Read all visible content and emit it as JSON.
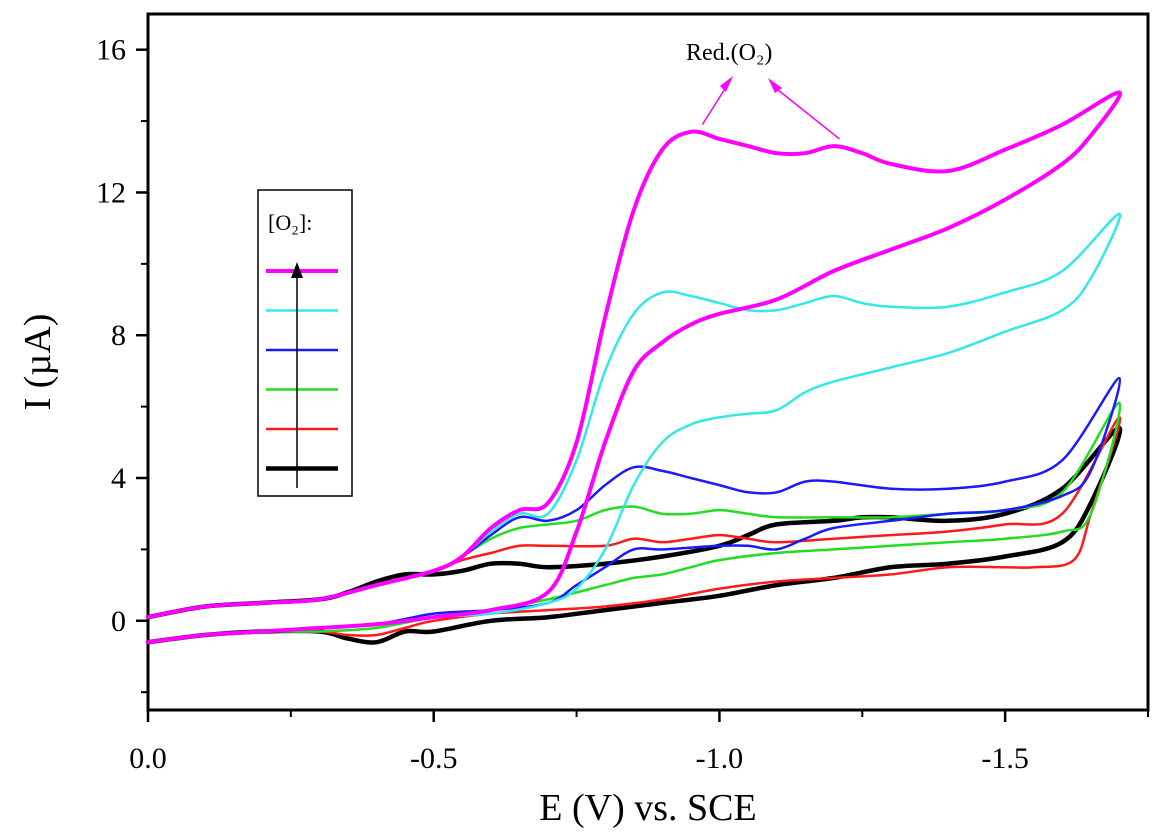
{
  "chart_data": {
    "type": "line",
    "title": "",
    "xlabel": "E (V) vs. SCE",
    "ylabel": "I (µA)",
    "x_reversed": true,
    "xlim": [
      0.0,
      -1.75
    ],
    "ylim": [
      -2.5,
      17.0
    ],
    "x_ticks": [
      0.0,
      -0.5,
      -1.0,
      -1.5
    ],
    "x_tick_labels": [
      "0.0",
      "-0.5",
      "-1.0",
      "-1.5"
    ],
    "y_ticks": [
      0,
      4,
      8,
      12,
      16
    ],
    "y_tick_labels": [
      "0",
      "4",
      "8",
      "12",
      "16"
    ],
    "grid": false,
    "legend": {
      "title": "[O₂]:",
      "placement": "left"
    },
    "annotation": {
      "text": "Red.(O₂)",
      "peaks_E": [
        -0.97,
        -1.21
      ]
    },
    "series": [
      {
        "color": "#ff00ff",
        "stroke": 4,
        "forward": [
          [
            0,
            0.1
          ],
          [
            -0.1,
            0.4
          ],
          [
            -0.2,
            0.5
          ],
          [
            -0.3,
            0.6
          ],
          [
            -0.4,
            1.0
          ],
          [
            -0.5,
            1.4
          ],
          [
            -0.55,
            1.8
          ],
          [
            -0.6,
            2.6
          ],
          [
            -0.65,
            3.1
          ],
          [
            -0.7,
            3.3
          ],
          [
            -0.75,
            5.0
          ],
          [
            -0.8,
            8.5
          ],
          [
            -0.85,
            11.5
          ],
          [
            -0.9,
            13.2
          ],
          [
            -0.95,
            13.7
          ],
          [
            -1.0,
            13.5
          ],
          [
            -1.05,
            13.3
          ],
          [
            -1.1,
            13.1
          ],
          [
            -1.15,
            13.1
          ],
          [
            -1.2,
            13.3
          ],
          [
            -1.25,
            13.1
          ],
          [
            -1.3,
            12.8
          ],
          [
            -1.4,
            12.6
          ],
          [
            -1.5,
            13.2
          ],
          [
            -1.6,
            13.9
          ],
          [
            -1.7,
            14.8
          ]
        ],
        "reverse": [
          [
            -1.7,
            14.8
          ],
          [
            -1.65,
            13.6
          ],
          [
            -1.6,
            12.8
          ],
          [
            -1.5,
            11.8
          ],
          [
            -1.4,
            11.0
          ],
          [
            -1.3,
            10.4
          ],
          [
            -1.2,
            9.8
          ],
          [
            -1.1,
            9.0
          ],
          [
            -1.0,
            8.6
          ],
          [
            -0.95,
            8.3
          ],
          [
            -0.9,
            7.8
          ],
          [
            -0.85,
            7.0
          ],
          [
            -0.8,
            5.0
          ],
          [
            -0.75,
            2.5
          ],
          [
            -0.7,
            0.8
          ],
          [
            -0.6,
            0.3
          ],
          [
            -0.5,
            0.1
          ],
          [
            -0.4,
            -0.1
          ],
          [
            -0.3,
            -0.2
          ],
          [
            -0.2,
            -0.3
          ],
          [
            -0.1,
            -0.4
          ],
          [
            0,
            -0.6
          ]
        ]
      },
      {
        "color": "#33e8e8",
        "stroke": 2.5,
        "forward": [
          [
            0,
            0.1
          ],
          [
            -0.1,
            0.4
          ],
          [
            -0.2,
            0.5
          ],
          [
            -0.3,
            0.6
          ],
          [
            -0.4,
            1.0
          ],
          [
            -0.5,
            1.4
          ],
          [
            -0.55,
            1.8
          ],
          [
            -0.6,
            2.5
          ],
          [
            -0.65,
            3.0
          ],
          [
            -0.7,
            3.0
          ],
          [
            -0.75,
            4.5
          ],
          [
            -0.8,
            7.0
          ],
          [
            -0.85,
            8.6
          ],
          [
            -0.9,
            9.2
          ],
          [
            -0.95,
            9.1
          ],
          [
            -1.0,
            8.9
          ],
          [
            -1.05,
            8.7
          ],
          [
            -1.1,
            8.7
          ],
          [
            -1.15,
            8.9
          ],
          [
            -1.2,
            9.1
          ],
          [
            -1.25,
            8.9
          ],
          [
            -1.3,
            8.8
          ],
          [
            -1.4,
            8.8
          ],
          [
            -1.5,
            9.2
          ],
          [
            -1.6,
            9.8
          ],
          [
            -1.7,
            11.4
          ]
        ],
        "reverse": [
          [
            -1.7,
            11.4
          ],
          [
            -1.65,
            9.6
          ],
          [
            -1.6,
            8.7
          ],
          [
            -1.5,
            8.1
          ],
          [
            -1.4,
            7.5
          ],
          [
            -1.3,
            7.1
          ],
          [
            -1.2,
            6.7
          ],
          [
            -1.15,
            6.4
          ],
          [
            -1.1,
            5.9
          ],
          [
            -1.05,
            5.8
          ],
          [
            -1.0,
            5.7
          ],
          [
            -0.95,
            5.5
          ],
          [
            -0.9,
            5.0
          ],
          [
            -0.85,
            3.8
          ],
          [
            -0.8,
            2.0
          ],
          [
            -0.75,
            0.9
          ],
          [
            -0.7,
            0.5
          ],
          [
            -0.6,
            0.2
          ],
          [
            -0.5,
            0.1
          ],
          [
            -0.4,
            -0.1
          ],
          [
            -0.3,
            -0.2
          ],
          [
            -0.2,
            -0.3
          ],
          [
            -0.1,
            -0.4
          ],
          [
            0,
            -0.6
          ]
        ]
      },
      {
        "color": "#1a1aff",
        "stroke": 2.5,
        "forward": [
          [
            0,
            0.1
          ],
          [
            -0.1,
            0.4
          ],
          [
            -0.2,
            0.5
          ],
          [
            -0.3,
            0.6
          ],
          [
            -0.4,
            1.0
          ],
          [
            -0.5,
            1.4
          ],
          [
            -0.55,
            1.8
          ],
          [
            -0.6,
            2.4
          ],
          [
            -0.65,
            2.9
          ],
          [
            -0.7,
            2.8
          ],
          [
            -0.75,
            3.1
          ],
          [
            -0.8,
            3.8
          ],
          [
            -0.85,
            4.3
          ],
          [
            -0.9,
            4.2
          ],
          [
            -0.95,
            4.0
          ],
          [
            -1.0,
            3.8
          ],
          [
            -1.05,
            3.6
          ],
          [
            -1.1,
            3.6
          ],
          [
            -1.15,
            3.9
          ],
          [
            -1.2,
            3.9
          ],
          [
            -1.3,
            3.7
          ],
          [
            -1.4,
            3.7
          ],
          [
            -1.5,
            3.9
          ],
          [
            -1.6,
            4.5
          ],
          [
            -1.7,
            6.8
          ]
        ],
        "reverse": [
          [
            -1.7,
            6.8
          ],
          [
            -1.65,
            4.2
          ],
          [
            -1.6,
            3.5
          ],
          [
            -1.5,
            3.1
          ],
          [
            -1.4,
            3.0
          ],
          [
            -1.3,
            2.8
          ],
          [
            -1.2,
            2.6
          ],
          [
            -1.15,
            2.3
          ],
          [
            -1.1,
            2.0
          ],
          [
            -1.05,
            2.1
          ],
          [
            -1.0,
            2.1
          ],
          [
            -0.9,
            2.0
          ],
          [
            -0.85,
            2.0
          ],
          [
            -0.8,
            1.5
          ],
          [
            -0.75,
            1.0
          ],
          [
            -0.7,
            0.5
          ],
          [
            -0.6,
            0.3
          ],
          [
            -0.5,
            0.2
          ],
          [
            -0.4,
            -0.1
          ],
          [
            -0.3,
            -0.2
          ],
          [
            -0.2,
            -0.3
          ],
          [
            -0.1,
            -0.4
          ],
          [
            0,
            -0.6
          ]
        ]
      },
      {
        "color": "#22dd22",
        "stroke": 2.5,
        "forward": [
          [
            0,
            0.1
          ],
          [
            -0.1,
            0.4
          ],
          [
            -0.2,
            0.5
          ],
          [
            -0.3,
            0.6
          ],
          [
            -0.4,
            1.0
          ],
          [
            -0.5,
            1.4
          ],
          [
            -0.55,
            1.8
          ],
          [
            -0.6,
            2.3
          ],
          [
            -0.65,
            2.6
          ],
          [
            -0.7,
            2.7
          ],
          [
            -0.75,
            2.8
          ],
          [
            -0.8,
            3.1
          ],
          [
            -0.85,
            3.2
          ],
          [
            -0.9,
            3.0
          ],
          [
            -0.95,
            3.0
          ],
          [
            -1.0,
            3.1
          ],
          [
            -1.05,
            3.0
          ],
          [
            -1.1,
            2.9
          ],
          [
            -1.2,
            2.9
          ],
          [
            -1.3,
            2.9
          ],
          [
            -1.4,
            3.0
          ],
          [
            -1.5,
            3.1
          ],
          [
            -1.6,
            3.6
          ],
          [
            -1.7,
            6.1
          ]
        ],
        "reverse": [
          [
            -1.7,
            6.1
          ],
          [
            -1.65,
            3.0
          ],
          [
            -1.6,
            2.5
          ],
          [
            -1.5,
            2.3
          ],
          [
            -1.4,
            2.2
          ],
          [
            -1.3,
            2.1
          ],
          [
            -1.2,
            2.0
          ],
          [
            -1.1,
            1.9
          ],
          [
            -1.0,
            1.7
          ],
          [
            -0.95,
            1.5
          ],
          [
            -0.9,
            1.3
          ],
          [
            -0.85,
            1.2
          ],
          [
            -0.8,
            1.0
          ],
          [
            -0.7,
            0.6
          ],
          [
            -0.6,
            0.3
          ],
          [
            -0.5,
            0.1
          ],
          [
            -0.4,
            -0.2
          ],
          [
            -0.3,
            -0.3
          ],
          [
            -0.2,
            -0.3
          ],
          [
            -0.1,
            -0.4
          ],
          [
            0,
            -0.6
          ]
        ]
      },
      {
        "color": "#ff1a1a",
        "stroke": 2.5,
        "forward": [
          [
            0,
            0.1
          ],
          [
            -0.1,
            0.4
          ],
          [
            -0.2,
            0.5
          ],
          [
            -0.3,
            0.6
          ],
          [
            -0.4,
            1.0
          ],
          [
            -0.5,
            1.4
          ],
          [
            -0.55,
            1.7
          ],
          [
            -0.6,
            1.9
          ],
          [
            -0.65,
            2.1
          ],
          [
            -0.7,
            2.1
          ],
          [
            -0.8,
            2.1
          ],
          [
            -0.85,
            2.3
          ],
          [
            -0.9,
            2.2
          ],
          [
            -0.95,
            2.3
          ],
          [
            -1.0,
            2.4
          ],
          [
            -1.05,
            2.3
          ],
          [
            -1.1,
            2.2
          ],
          [
            -1.2,
            2.3
          ],
          [
            -1.3,
            2.4
          ],
          [
            -1.4,
            2.5
          ],
          [
            -1.5,
            2.7
          ],
          [
            -1.6,
            3.0
          ],
          [
            -1.7,
            5.7
          ]
        ],
        "reverse": [
          [
            -1.7,
            5.7
          ],
          [
            -1.65,
            3.0
          ],
          [
            -1.62,
            1.7
          ],
          [
            -1.55,
            1.5
          ],
          [
            -1.5,
            1.5
          ],
          [
            -1.4,
            1.5
          ],
          [
            -1.3,
            1.3
          ],
          [
            -1.2,
            1.2
          ],
          [
            -1.1,
            1.1
          ],
          [
            -1.0,
            0.9
          ],
          [
            -0.9,
            0.6
          ],
          [
            -0.8,
            0.4
          ],
          [
            -0.7,
            0.3
          ],
          [
            -0.6,
            0.2
          ],
          [
            -0.5,
            0.0
          ],
          [
            -0.45,
            -0.2
          ],
          [
            -0.4,
            -0.4
          ],
          [
            -0.35,
            -0.4
          ],
          [
            -0.3,
            -0.3
          ],
          [
            -0.2,
            -0.3
          ],
          [
            -0.1,
            -0.4
          ],
          [
            0,
            -0.6
          ]
        ]
      },
      {
        "color": "#000000",
        "stroke": 4.5,
        "forward": [
          [
            0,
            0.1
          ],
          [
            -0.1,
            0.4
          ],
          [
            -0.2,
            0.5
          ],
          [
            -0.3,
            0.6
          ],
          [
            -0.35,
            0.8
          ],
          [
            -0.4,
            1.1
          ],
          [
            -0.45,
            1.3
          ],
          [
            -0.5,
            1.3
          ],
          [
            -0.55,
            1.4
          ],
          [
            -0.6,
            1.6
          ],
          [
            -0.65,
            1.6
          ],
          [
            -0.7,
            1.5
          ],
          [
            -0.8,
            1.6
          ],
          [
            -0.9,
            1.8
          ],
          [
            -1.0,
            2.1
          ],
          [
            -1.05,
            2.4
          ],
          [
            -1.1,
            2.7
          ],
          [
            -1.2,
            2.8
          ],
          [
            -1.25,
            2.9
          ],
          [
            -1.3,
            2.9
          ],
          [
            -1.4,
            2.8
          ],
          [
            -1.5,
            3.0
          ],
          [
            -1.6,
            3.7
          ],
          [
            -1.7,
            5.4
          ]
        ],
        "reverse": [
          [
            -1.7,
            5.4
          ],
          [
            -1.65,
            3.3
          ],
          [
            -1.6,
            2.2
          ],
          [
            -1.5,
            1.8
          ],
          [
            -1.4,
            1.6
          ],
          [
            -1.3,
            1.5
          ],
          [
            -1.2,
            1.2
          ],
          [
            -1.1,
            1.0
          ],
          [
            -1.0,
            0.7
          ],
          [
            -0.9,
            0.5
          ],
          [
            -0.8,
            0.3
          ],
          [
            -0.7,
            0.1
          ],
          [
            -0.6,
            0.0
          ],
          [
            -0.5,
            -0.3
          ],
          [
            -0.45,
            -0.3
          ],
          [
            -0.4,
            -0.6
          ],
          [
            -0.35,
            -0.5
          ],
          [
            -0.3,
            -0.3
          ],
          [
            -0.2,
            -0.3
          ],
          [
            -0.1,
            -0.4
          ],
          [
            0,
            -0.6
          ]
        ]
      }
    ]
  }
}
